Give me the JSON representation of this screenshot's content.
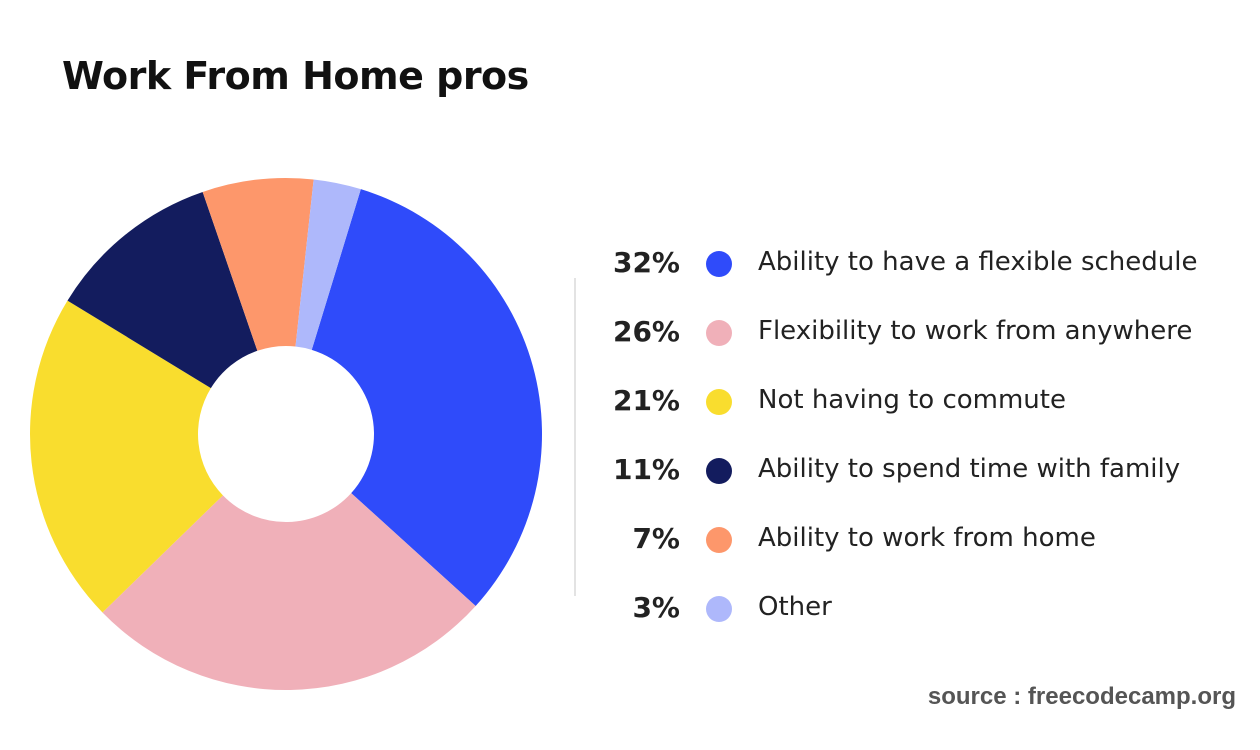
{
  "chart_data": {
    "type": "pie",
    "title": "Work From Home pros",
    "categories": [
      "Ability to have a flexible schedule",
      "Flexibility to work from anywhere",
      "Not having to commute",
      "Ability to spend time with family",
      "Ability to work from home",
      "Other"
    ],
    "values": [
      32,
      26,
      21,
      11,
      7,
      3
    ],
    "labels": [
      "32%",
      "26%",
      "21%",
      "11%",
      "7%",
      "3%"
    ],
    "colors": [
      "#2f4bfa",
      "#f0b0b9",
      "#f9dd2e",
      "#131c5e",
      "#fd976b",
      "#aeb8fb"
    ],
    "donut": true,
    "legend_position": "right"
  },
  "source": "source : freecodecamp.org"
}
